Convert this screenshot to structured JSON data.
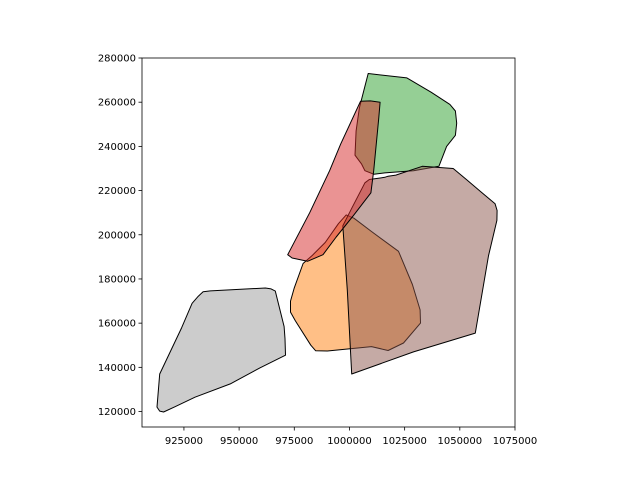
{
  "chart_data": {
    "type": "polygon-map",
    "xlim": [
      906000,
      1075000
    ],
    "ylim": [
      113000,
      280000
    ],
    "xticks": [
      925000,
      950000,
      975000,
      1000000,
      1025000,
      1050000,
      1075000
    ],
    "xtick_labels": [
      "925000",
      "950000",
      "975000",
      "1000000",
      "1025000",
      "1050000",
      "1075000"
    ],
    "yticks": [
      120000,
      140000,
      160000,
      180000,
      200000,
      220000,
      240000,
      260000,
      280000
    ],
    "ytick_labels": [
      "120000",
      "140000",
      "160000",
      "180000",
      "200000",
      "220000",
      "240000",
      "260000",
      "280000"
    ],
    "grid": false,
    "legend": "none",
    "title": "",
    "xlabel": "",
    "ylabel": "",
    "edge_color": "#000000",
    "fill_opacity": 0.5,
    "polygons": [
      {
        "color": "#999999",
        "points": [
          [
            912800,
            122000
          ],
          [
            914000,
            120200
          ],
          [
            915800,
            119800
          ],
          [
            921000,
            122200
          ],
          [
            930000,
            126500
          ],
          [
            946000,
            132500
          ],
          [
            959500,
            139800
          ],
          [
            971000,
            145500
          ],
          [
            970800,
            153000
          ],
          [
            970400,
            158500
          ],
          [
            966400,
            174500
          ],
          [
            964500,
            175500
          ],
          [
            961900,
            175900
          ],
          [
            937000,
            174600
          ],
          [
            933700,
            174200
          ],
          [
            931500,
            172200
          ],
          [
            928700,
            169000
          ],
          [
            924000,
            158000
          ],
          [
            914000,
            137000
          ]
        ]
      },
      {
        "color": "#2ca02c",
        "points": [
          [
            1008500,
            273000
          ],
          [
            1026000,
            271000
          ],
          [
            1037000,
            264500
          ],
          [
            1045500,
            259000
          ],
          [
            1048000,
            256000
          ],
          [
            1048600,
            250500
          ],
          [
            1048000,
            245000
          ],
          [
            1044000,
            240000
          ],
          [
            1040500,
            231000
          ],
          [
            1029000,
            229000
          ],
          [
            1016000,
            228000
          ],
          [
            1011000,
            227400
          ],
          [
            1007000,
            229000
          ],
          [
            1005500,
            232000
          ],
          [
            1002500,
            236000
          ],
          [
            1003000,
            247000
          ],
          [
            1004500,
            257500
          ]
        ]
      },
      {
        "color": "#ff7f0e",
        "points": [
          [
            998500,
            209000
          ],
          [
            1002000,
            207500
          ],
          [
            1010000,
            201500
          ],
          [
            1022200,
            192500
          ],
          [
            1028500,
            177500
          ],
          [
            1032000,
            166000
          ],
          [
            1032200,
            160000
          ],
          [
            1024500,
            151000
          ],
          [
            1017500,
            147600
          ],
          [
            1010000,
            149400
          ],
          [
            990000,
            147400
          ],
          [
            984700,
            147500
          ],
          [
            982500,
            150000
          ],
          [
            975500,
            161000
          ],
          [
            973300,
            165000
          ],
          [
            973300,
            170000
          ],
          [
            975000,
            176000
          ],
          [
            979000,
            187000
          ],
          [
            983000,
            190500
          ],
          [
            989000,
            196500
          ],
          [
            995000,
            205000
          ]
        ]
      },
      {
        "color": "#8c564b",
        "points": [
          [
            1016000,
            226000
          ],
          [
            1017500,
            226500
          ],
          [
            1021000,
            227000
          ],
          [
            1033000,
            231000
          ],
          [
            1040000,
            230500
          ],
          [
            1047000,
            230000
          ],
          [
            1053000,
            225000
          ],
          [
            1059500,
            219500
          ],
          [
            1066000,
            214000
          ],
          [
            1066900,
            211000
          ],
          [
            1066800,
            206500
          ],
          [
            1063000,
            190500
          ],
          [
            1057000,
            155500
          ],
          [
            1029000,
            147000
          ],
          [
            1001000,
            137000
          ],
          [
            999000,
            175000
          ],
          [
            997000,
            204000
          ],
          [
            1001000,
            212000
          ],
          [
            1007000,
            223500
          ],
          [
            1009000,
            225000
          ]
        ]
      },
      {
        "color": "#d62728",
        "points": [
          [
            981000,
            188000
          ],
          [
            988000,
            191000
          ],
          [
            994000,
            199000
          ],
          [
            1002000,
            209000
          ],
          [
            1009700,
            219000
          ],
          [
            1011000,
            229000
          ],
          [
            1013300,
            253000
          ],
          [
            1013900,
            260000
          ],
          [
            1009500,
            260600
          ],
          [
            1005000,
            260400
          ],
          [
            996000,
            241000
          ],
          [
            991000,
            229000
          ],
          [
            982000,
            210000
          ],
          [
            972000,
            191000
          ],
          [
            974000,
            189500
          ]
        ]
      }
    ]
  }
}
